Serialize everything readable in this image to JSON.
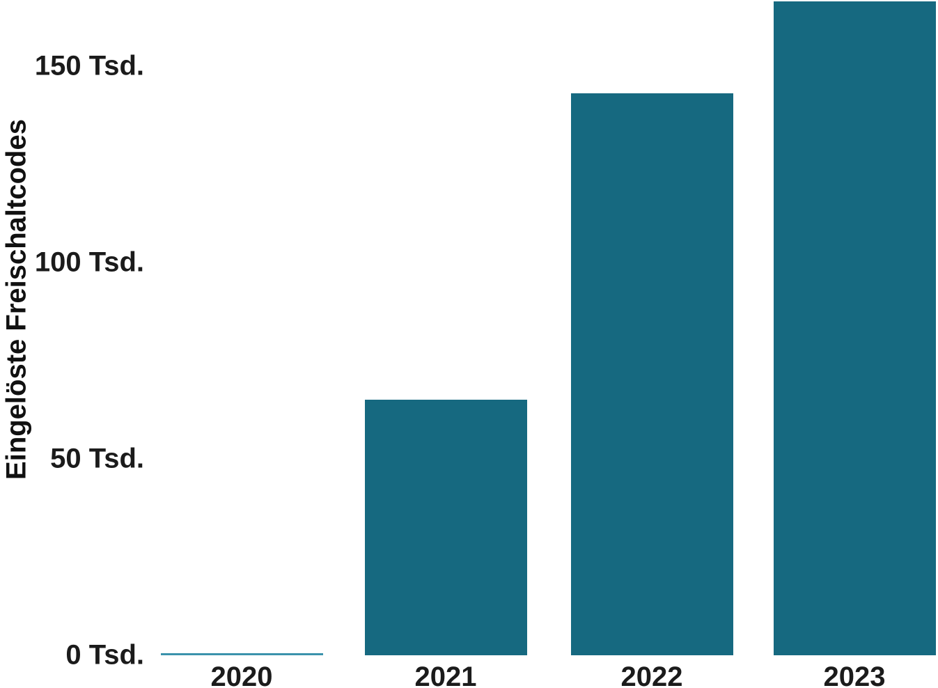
{
  "chart_data": {
    "type": "bar",
    "title": "",
    "categories": [
      "2020",
      "2021",
      "2022",
      "2023"
    ],
    "values": [
      0.5,
      65,
      143,
      166.5
    ],
    "unit": "Tsd.",
    "xlabel": "",
    "ylabel": "Eingelöste Freischaltcodes",
    "y_ticks": [
      {
        "label": "0 Tsd.",
        "value": 0
      },
      {
        "label": "50 Tsd.",
        "value": 50
      },
      {
        "label": "100 Tsd.",
        "value": 100
      },
      {
        "label": "150 Tsd.",
        "value": 150
      }
    ],
    "ylim": [
      0,
      167
    ],
    "grid": false,
    "legend": false,
    "colors": {
      "bar": "#166980",
      "zero_bar_line": "#3a92ac",
      "text": "#1b1b1b",
      "background": "#ffffff"
    }
  }
}
